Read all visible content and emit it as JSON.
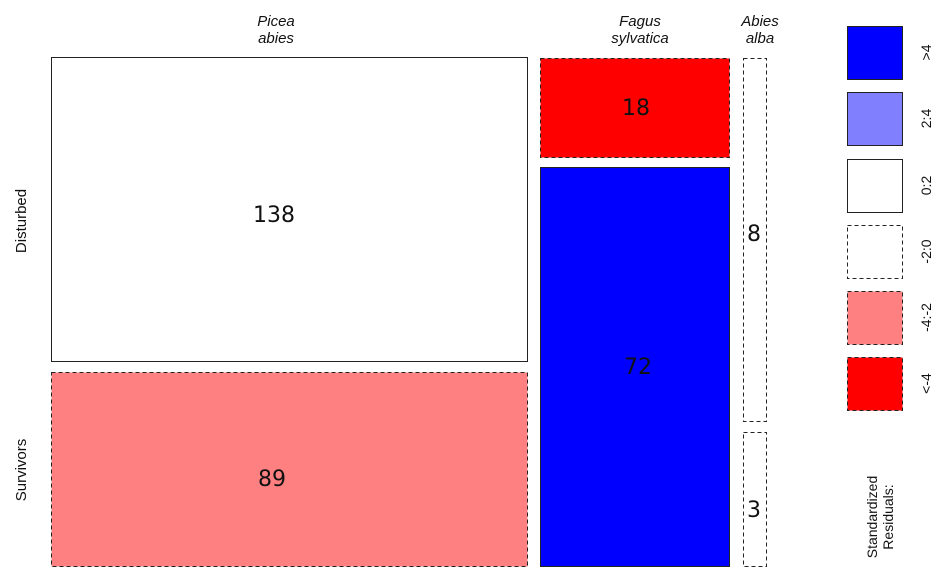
{
  "chart_data": {
    "type": "mosaic",
    "columns": [
      "Picea\nabies",
      "Fagus\nsylvatica",
      "Abies\nalba"
    ],
    "rows": [
      "Disturbed",
      "Survivors"
    ],
    "cells": [
      {
        "col": 0,
        "row": 0,
        "count": "138",
        "residual_class": 2
      },
      {
        "col": 0,
        "row": 1,
        "count": "89",
        "residual_class": 4
      },
      {
        "col": 1,
        "row": 0,
        "count": "18",
        "residual_class": 5
      },
      {
        "col": 1,
        "row": 1,
        "count": "72",
        "residual_class": 0
      },
      {
        "col": 2,
        "row": 0,
        "count": "8",
        "residual_class": 3
      },
      {
        "col": 2,
        "row": 1,
        "count": "3",
        "residual_class": 3
      }
    ],
    "legend": {
      "title": "Standardized\nResiduals:",
      "items": [
        {
          "label": ">4",
          "fill": "#0000ff",
          "dashed": false
        },
        {
          "label": "2:4",
          "fill": "#8080ff",
          "dashed": false
        },
        {
          "label": "0:2",
          "fill": "#ffffff",
          "dashed": false
        },
        {
          "label": "-2:0",
          "fill": "#ffffff",
          "dashed": true
        },
        {
          "label": "-4:-2",
          "fill": "#ff8080",
          "dashed": true
        },
        {
          "label": "<-4",
          "fill": "#ff0000",
          "dashed": true
        }
      ]
    }
  }
}
